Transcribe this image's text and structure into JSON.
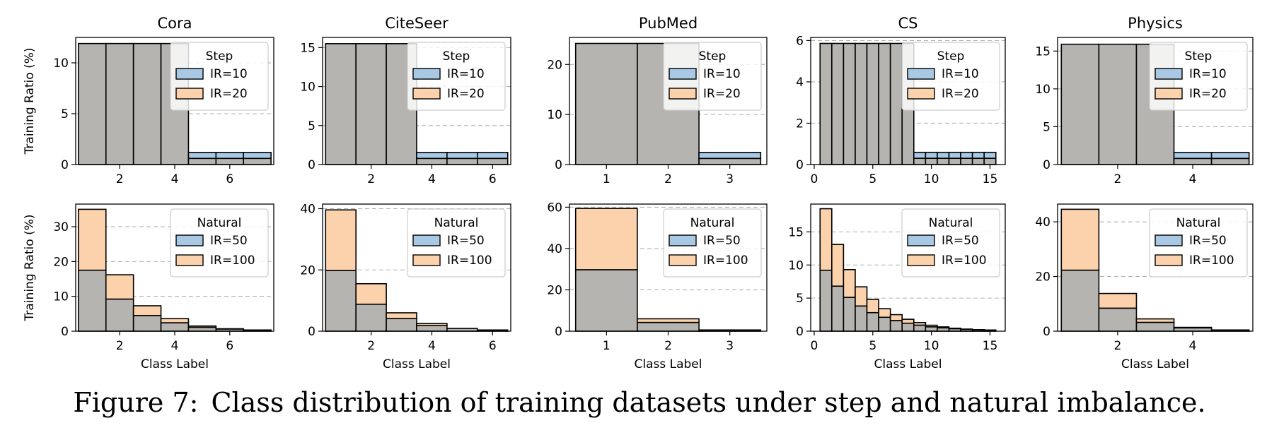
{
  "caption": {
    "label": "Figure 7:",
    "text": "Class distribution of training datasets under step and natural imbalance."
  },
  "colors": {
    "low_ir": "#a8c8e4",
    "high_ir": "#fbd2ab",
    "overlap": "#b5b4b0",
    "grid": "#b0b0b0",
    "edge": "#000000"
  },
  "chart_data": [
    {
      "type": "bar",
      "title": "Cora",
      "ylabel": "Training Ratio (%)",
      "xlabel": "",
      "legend_title": "Step",
      "legend_position": "top-right",
      "grid": "y-dashed",
      "categories": [
        1,
        2,
        3,
        4,
        5,
        6,
        7
      ],
      "xticks": [
        2,
        4,
        6
      ],
      "yticks": [
        0,
        5,
        10
      ],
      "ylim": [
        0,
        12.5
      ],
      "xlim": [
        0.4,
        7.6
      ],
      "series": [
        {
          "name": "IR=10",
          "values": [
            11.9,
            11.9,
            11.9,
            11.9,
            1.19,
            1.19,
            1.19
          ]
        },
        {
          "name": "IR=20",
          "values": [
            11.9,
            11.9,
            11.9,
            11.9,
            0.6,
            0.6,
            0.6
          ]
        }
      ]
    },
    {
      "type": "bar",
      "title": "CiteSeer",
      "ylabel": "",
      "xlabel": "",
      "legend_title": "Step",
      "legend_position": "top-right",
      "grid": "y-dashed",
      "categories": [
        1,
        2,
        3,
        4,
        5,
        6
      ],
      "xticks": [
        2,
        4,
        6
      ],
      "yticks": [
        0,
        5,
        10,
        15
      ],
      "ylim": [
        0,
        16.3
      ],
      "xlim": [
        0.4,
        6.6
      ],
      "series": [
        {
          "name": "IR=10",
          "values": [
            15.5,
            15.5,
            15.5,
            1.55,
            1.55,
            1.55
          ]
        },
        {
          "name": "IR=20",
          "values": [
            15.5,
            15.5,
            15.5,
            0.78,
            0.78,
            0.78
          ]
        }
      ]
    },
    {
      "type": "bar",
      "title": "PubMed",
      "ylabel": "",
      "xlabel": "",
      "legend_title": "Step",
      "legend_position": "top-right",
      "grid": "y-dashed",
      "categories": [
        1,
        2,
        3
      ],
      "xticks": [
        1,
        2,
        3
      ],
      "yticks": [
        0,
        10,
        20
      ],
      "ylim": [
        0,
        25.4
      ],
      "xlim": [
        0.4,
        3.6
      ],
      "series": [
        {
          "name": "IR=10",
          "values": [
            24.2,
            24.2,
            2.42
          ]
        },
        {
          "name": "IR=20",
          "values": [
            24.2,
            24.2,
            1.21
          ]
        }
      ]
    },
    {
      "type": "bar",
      "title": "CS",
      "ylabel": "",
      "xlabel": "",
      "legend_title": "Step",
      "legend_position": "top-right",
      "grid": "y-dashed",
      "categories": [
        1,
        2,
        3,
        4,
        5,
        6,
        7,
        8,
        9,
        10,
        11,
        12,
        13,
        14,
        15
      ],
      "xticks": [
        0,
        5,
        10,
        15
      ],
      "yticks": [
        0,
        2,
        4,
        6
      ],
      "ylim": [
        0,
        6.15
      ],
      "xlim": [
        -0.3,
        16.3
      ],
      "series": [
        {
          "name": "IR=10",
          "values": [
            5.86,
            5.86,
            5.86,
            5.86,
            5.86,
            5.86,
            5.86,
            5.86,
            0.59,
            0.59,
            0.59,
            0.59,
            0.59,
            0.59,
            0.59
          ]
        },
        {
          "name": "IR=20",
          "values": [
            5.86,
            5.86,
            5.86,
            5.86,
            5.86,
            5.86,
            5.86,
            5.86,
            0.3,
            0.3,
            0.3,
            0.3,
            0.3,
            0.3,
            0.3
          ]
        }
      ]
    },
    {
      "type": "bar",
      "title": "Physics",
      "ylabel": "",
      "xlabel": "",
      "legend_title": "Step",
      "legend_position": "top-right",
      "grid": "y-dashed",
      "categories": [
        1,
        2,
        3,
        4,
        5
      ],
      "xticks": [
        2,
        4
      ],
      "yticks": [
        0,
        5,
        10,
        15
      ],
      "ylim": [
        0,
        16.8
      ],
      "xlim": [
        0.4,
        5.6
      ],
      "series": [
        {
          "name": "IR=10",
          "values": [
            15.9,
            15.9,
            15.9,
            1.59,
            1.59
          ]
        },
        {
          "name": "IR=20",
          "values": [
            15.9,
            15.9,
            15.9,
            0.8,
            0.8
          ]
        }
      ]
    },
    {
      "type": "bar",
      "title": "",
      "ylabel": "Training Ratio (%)",
      "xlabel": "Class Label",
      "legend_title": "Natural",
      "legend_position": "top-right",
      "grid": "y-dashed",
      "categories": [
        1,
        2,
        3,
        4,
        5,
        6,
        7
      ],
      "xticks": [
        2,
        4,
        6
      ],
      "yticks": [
        0,
        10,
        20,
        30
      ],
      "ylim": [
        0,
        36.5
      ],
      "xlim": [
        0.4,
        7.6
      ],
      "series": [
        {
          "name": "IR=50",
          "values": [
            17.5,
            9.2,
            4.5,
            2.4,
            1.1,
            0.6,
            0.35
          ]
        },
        {
          "name": "IR=100",
          "values": [
            35,
            16.2,
            7.3,
            3.6,
            1.5,
            0.7,
            0.35
          ]
        }
      ]
    },
    {
      "type": "bar",
      "title": "",
      "ylabel": "",
      "xlabel": "Class Label",
      "legend_title": "Natural",
      "legend_position": "top-right",
      "grid": "y-dashed",
      "categories": [
        1,
        2,
        3,
        4,
        5,
        6
      ],
      "xticks": [
        2,
        4,
        6
      ],
      "yticks": [
        0,
        20,
        40
      ],
      "ylim": [
        0,
        41.5
      ],
      "xlim": [
        0.4,
        6.6
      ],
      "series": [
        {
          "name": "IR=50",
          "values": [
            19.8,
            8.8,
            4.1,
            1.9,
            0.9,
            0.4
          ]
        },
        {
          "name": "IR=100",
          "values": [
            39.6,
            15.5,
            6,
            2.5,
            0.9,
            0.4
          ]
        }
      ]
    },
    {
      "type": "bar",
      "title": "",
      "ylabel": "",
      "xlabel": "Class Label",
      "legend_title": "Natural",
      "legend_position": "top-right",
      "grid": "y-dashed",
      "categories": [
        1,
        2,
        3
      ],
      "xticks": [
        1,
        2,
        3
      ],
      "yticks": [
        0,
        20,
        40,
        60
      ],
      "ylim": [
        0,
        61.5
      ],
      "xlim": [
        0.4,
        3.6
      ],
      "series": [
        {
          "name": "IR=50",
          "values": [
            29.7,
            4.2,
            0.6
          ]
        },
        {
          "name": "IR=100",
          "values": [
            59.4,
            6,
            0.6
          ]
        }
      ]
    },
    {
      "type": "bar",
      "title": "",
      "ylabel": "",
      "xlabel": "Class Label",
      "legend_title": "Natural",
      "legend_position": "top-right",
      "grid": "y-dashed",
      "categories": [
        1,
        2,
        3,
        4,
        5,
        6,
        7,
        8,
        9,
        10,
        11,
        12,
        13,
        14,
        15
      ],
      "xticks": [
        0,
        5,
        10,
        15
      ],
      "yticks": [
        0,
        5,
        10,
        15
      ],
      "ylim": [
        0,
        19.2
      ],
      "xlim": [
        -0.3,
        16.3
      ],
      "series": [
        {
          "name": "IR=50",
          "values": [
            9.2,
            6.8,
            5.1,
            3.8,
            2.8,
            2.1,
            1.6,
            1.2,
            0.9,
            0.65,
            0.5,
            0.37,
            0.27,
            0.2,
            0.18
          ]
        },
        {
          "name": "IR=100",
          "values": [
            18.5,
            13.1,
            9.3,
            6.7,
            4.8,
            3.4,
            2.5,
            1.8,
            1.3,
            0.9,
            0.65,
            0.45,
            0.32,
            0.23,
            0.18
          ]
        }
      ]
    },
    {
      "type": "bar",
      "title": "",
      "ylabel": "",
      "xlabel": "Class Label",
      "legend_title": "Natural",
      "legend_position": "top-right",
      "grid": "y-dashed",
      "categories": [
        1,
        2,
        3,
        4,
        5
      ],
      "xticks": [
        2,
        4
      ],
      "yticks": [
        0,
        20,
        40
      ],
      "ylim": [
        0,
        46.5
      ],
      "xlim": [
        0.4,
        5.6
      ],
      "series": [
        {
          "name": "IR=50",
          "values": [
            22.3,
            8.4,
            3.2,
            1.2,
            0.45
          ]
        },
        {
          "name": "IR=100",
          "values": [
            44.6,
            13.8,
            4.5,
            1.4,
            0.45
          ]
        }
      ]
    }
  ]
}
